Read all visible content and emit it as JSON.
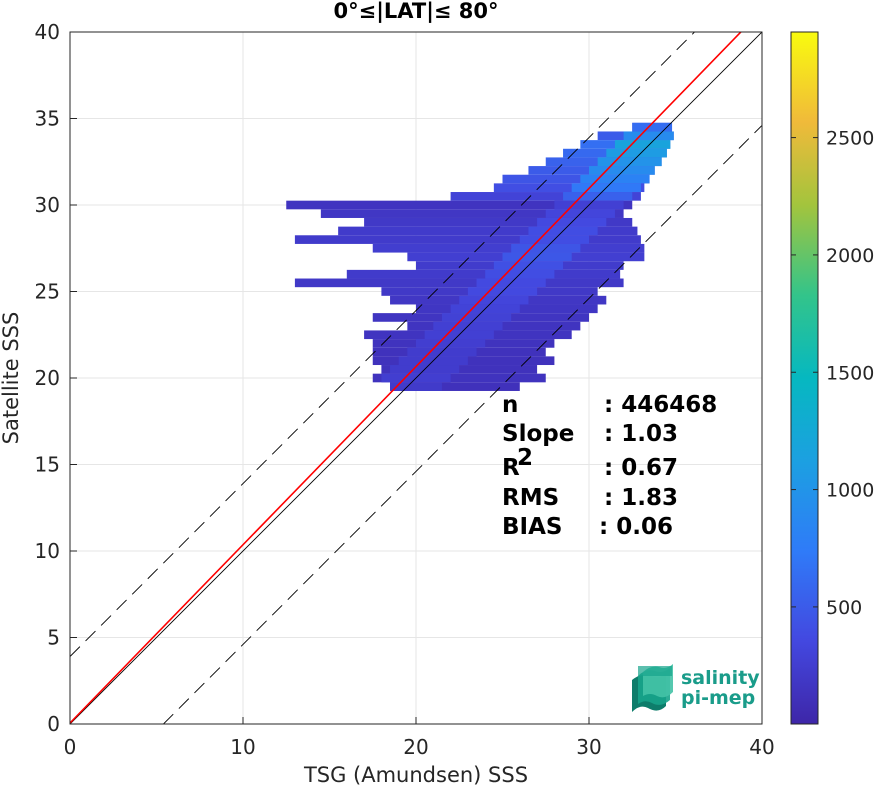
{
  "chart_data": {
    "type": "heatmap",
    "title": "0°≤|LAT|≤ 80°",
    "xlabel": "TSG (Amundsen) SSS",
    "ylabel": "Satellite SSS",
    "xlim": [
      0,
      40
    ],
    "ylim": [
      0,
      40
    ],
    "xticks": [
      "0",
      "10",
      "20",
      "30",
      "40"
    ],
    "yticks": [
      "0",
      "5",
      "10",
      "15",
      "20",
      "25",
      "30",
      "35",
      "40"
    ],
    "grid": true,
    "colormap": "parula",
    "colorbar": {
      "range": [
        1,
        2950
      ],
      "ticks": [
        "500",
        "1000",
        "1500",
        "2000",
        "2500"
      ],
      "tick_values": [
        500,
        1000,
        1500,
        2000,
        2500
      ]
    },
    "reference_lines": [
      {
        "kind": "identity",
        "color": "#000000",
        "style": "solid"
      },
      {
        "kind": "regression",
        "color": "#ff0000",
        "style": "solid",
        "slope": 1.03,
        "intercept": 0.06
      },
      {
        "kind": "offset",
        "color": "#000000",
        "style": "dashed",
        "offset": 3.9
      },
      {
        "kind": "offset",
        "color": "#000000",
        "style": "dashed",
        "offset": -5.4
      }
    ],
    "density_ranges": [
      {
        "y": 34.5,
        "x": [
          32.5,
          34.8
        ],
        "level": 350
      },
      {
        "y": 34.0,
        "x": [
          30.5,
          34.9
        ],
        "level": 500
      },
      {
        "y": 33.5,
        "x": [
          29.5,
          34.7
        ],
        "level": 650
      },
      {
        "y": 33.0,
        "x": [
          28.5,
          34.5
        ],
        "level": 600
      },
      {
        "y": 32.5,
        "x": [
          27.5,
          34.2
        ],
        "level": 550
      },
      {
        "y": 32.0,
        "x": [
          26.5,
          33.8
        ],
        "level": 500
      },
      {
        "y": 31.5,
        "x": [
          25.0,
          33.5
        ],
        "level": 450
      },
      {
        "y": 31.0,
        "x": [
          24.5,
          33.2
        ],
        "level": 400
      },
      {
        "y": 30.5,
        "x": [
          22.0,
          33.0
        ],
        "level": 300
      },
      {
        "y": 30.0,
        "x": [
          12.5,
          32.5
        ],
        "level": 150
      },
      {
        "y": 29.5,
        "x": [
          14.5,
          32.0
        ],
        "level": 180
      },
      {
        "y": 29.0,
        "x": [
          17.0,
          32.5
        ],
        "level": 200
      },
      {
        "y": 28.5,
        "x": [
          15.5,
          32.8
        ],
        "level": 220
      },
      {
        "y": 28.0,
        "x": [
          13.0,
          33.0
        ],
        "level": 220
      },
      {
        "y": 27.5,
        "x": [
          17.5,
          33.2
        ],
        "level": 250
      },
      {
        "y": 27.0,
        "x": [
          19.5,
          33.2
        ],
        "level": 260
      },
      {
        "y": 26.5,
        "x": [
          20.0,
          32.0
        ],
        "level": 230
      },
      {
        "y": 26.0,
        "x": [
          16.0,
          31.8
        ],
        "level": 220
      },
      {
        "y": 25.5,
        "x": [
          13.0,
          32.0
        ],
        "level": 200
      },
      {
        "y": 25.0,
        "x": [
          18.0,
          30.5
        ],
        "level": 200
      },
      {
        "y": 24.5,
        "x": [
          18.5,
          31.0
        ],
        "level": 180
      },
      {
        "y": 24.0,
        "x": [
          20.0,
          30.5
        ],
        "level": 170
      },
      {
        "y": 23.5,
        "x": [
          17.5,
          30.0
        ],
        "level": 160
      },
      {
        "y": 23.0,
        "x": [
          19.5,
          29.5
        ],
        "level": 150
      },
      {
        "y": 22.5,
        "x": [
          17.0,
          29.0
        ],
        "level": 150
      },
      {
        "y": 22.0,
        "x": [
          17.5,
          28.0
        ],
        "level": 140
      },
      {
        "y": 21.5,
        "x": [
          17.5,
          27.5
        ],
        "level": 130
      },
      {
        "y": 21.0,
        "x": [
          17.5,
          28.0
        ],
        "level": 130
      },
      {
        "y": 20.5,
        "x": [
          18.0,
          27.0
        ],
        "level": 130
      },
      {
        "y": 20.0,
        "x": [
          17.5,
          27.5
        ],
        "level": 140
      },
      {
        "y": 19.5,
        "x": [
          18.5,
          26.0
        ],
        "level": 120
      }
    ],
    "stats": [
      {
        "label": "n",
        "value": ": 446468"
      },
      {
        "label": "Slope",
        "value": ": 1.03"
      },
      {
        "label": "R",
        "sup": "2",
        "value": ": 0.67"
      },
      {
        "label": "RMS",
        "value": ": 1.83"
      },
      {
        "label": "BIAS",
        "value": ": 0.06"
      }
    ]
  },
  "logo": {
    "line1": "salinity",
    "line2": "pi-mep",
    "colors": [
      "#17a48b",
      "#44c2a6",
      "#8fd9c3",
      "#0e7d6b"
    ]
  }
}
